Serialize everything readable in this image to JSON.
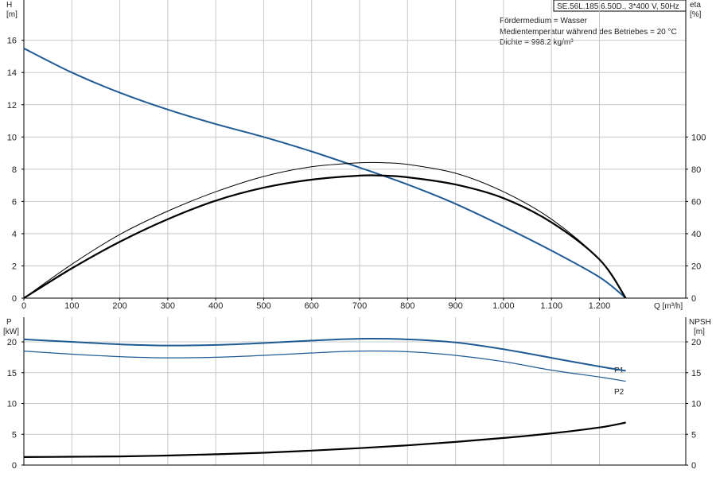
{
  "title_box": "SE.56L.185.6.50D., 3*400 V, 50Hz",
  "info_lines": [
    "Fördermedium = Wasser",
    "Medientemperatur während des Betriebes = 20 °C",
    "Dichte = 998.2 kg/m³"
  ],
  "colors": {
    "curve_blue": "#1f5a94",
    "curve_black": "#000000",
    "grid": "#c8c8c8",
    "axis": "#000000"
  },
  "chart_data": [
    {
      "type": "line",
      "xlabel": "Q [m³/h]",
      "ylabel_left": {
        "name": "H",
        "unit": "[m]"
      },
      "ylabel_right": {
        "name": "eta",
        "unit": "[%]"
      },
      "xlim": [
        0,
        1380
      ],
      "ylim_left": [
        0,
        18.5
      ],
      "ylim_right": [
        0,
        185
      ],
      "x_ticks": [
        0,
        100,
        200,
        300,
        400,
        500,
        600,
        700,
        800,
        900,
        1000,
        1100,
        1200
      ],
      "x_tick_labels": [
        "0",
        "100",
        "200",
        "300",
        "400",
        "500",
        "600",
        "700",
        "800",
        "900",
        "1.000",
        "1.100",
        "1.200"
      ],
      "y_ticks_left": [
        0,
        2,
        4,
        6,
        8,
        10,
        12,
        14,
        16
      ],
      "y_ticks_right": [
        0,
        20,
        40,
        60,
        80,
        100
      ],
      "grid": true,
      "series": [
        {
          "axis": "left",
          "color": "#1f5a94",
          "width": 2,
          "x": [
            0,
            100,
            200,
            300,
            400,
            500,
            600,
            700,
            800,
            900,
            1000,
            1100,
            1200,
            1255
          ],
          "y": [
            15.5,
            14.0,
            12.75,
            11.7,
            10.8,
            10.0,
            9.1,
            8.1,
            7.05,
            5.85,
            4.45,
            2.95,
            1.3,
            0.0
          ]
        },
        {
          "axis": "right",
          "color": "#000000",
          "width": 1,
          "x": [
            0,
            100,
            200,
            300,
            400,
            500,
            600,
            700,
            750,
            800,
            900,
            1000,
            1100,
            1200,
            1255
          ],
          "y": [
            0,
            21,
            39.5,
            54,
            66,
            75.5,
            81.5,
            84,
            84,
            83,
            77.5,
            66,
            49,
            24,
            0
          ]
        },
        {
          "axis": "right",
          "color": "#000000",
          "width": 2.2,
          "x": [
            0,
            100,
            200,
            300,
            400,
            500,
            600,
            700,
            750,
            800,
            900,
            1000,
            1100,
            1200,
            1255
          ],
          "y": [
            0,
            18.5,
            35,
            49,
            60.5,
            68.5,
            73.5,
            76,
            76,
            75,
            70.5,
            62,
            47,
            24,
            0
          ]
        }
      ]
    },
    {
      "type": "line",
      "xlabel": "",
      "ylabel_left": {
        "name": "P",
        "unit": "[kW]"
      },
      "ylabel_right": {
        "name": "NPSH",
        "unit": "[m]"
      },
      "xlim": [
        0,
        1380
      ],
      "ylim_left": [
        0,
        24
      ],
      "ylim_right": [
        0,
        24
      ],
      "y_ticks_left": [
        0,
        5,
        10,
        15,
        20
      ],
      "y_ticks_right": [
        0,
        5,
        10,
        15,
        20
      ],
      "grid": true,
      "series": [
        {
          "name": "P1",
          "axis": "left",
          "color": "#1f5a94",
          "width": 2,
          "x": [
            0,
            100,
            200,
            300,
            400,
            500,
            600,
            700,
            800,
            900,
            1000,
            1100,
            1200,
            1255
          ],
          "y": [
            20.4,
            20.0,
            19.6,
            19.4,
            19.5,
            19.8,
            20.2,
            20.5,
            20.4,
            19.9,
            18.8,
            17.4,
            16.0,
            15.3
          ]
        },
        {
          "name": "P2",
          "axis": "left",
          "color": "#1f5a94",
          "width": 1.2,
          "x": [
            0,
            100,
            200,
            300,
            400,
            500,
            600,
            700,
            800,
            900,
            1000,
            1100,
            1200,
            1255
          ],
          "y": [
            18.5,
            18.0,
            17.6,
            17.4,
            17.5,
            17.8,
            18.2,
            18.5,
            18.4,
            17.8,
            16.8,
            15.4,
            14.3,
            13.6
          ]
        },
        {
          "axis": "right",
          "color": "#000000",
          "width": 2.2,
          "x": [
            0,
            100,
            200,
            300,
            400,
            500,
            600,
            700,
            800,
            900,
            1000,
            1100,
            1200,
            1255
          ],
          "y": [
            1.3,
            1.35,
            1.4,
            1.55,
            1.75,
            2.0,
            2.35,
            2.75,
            3.2,
            3.75,
            4.4,
            5.15,
            6.1,
            6.9
          ]
        }
      ]
    }
  ]
}
